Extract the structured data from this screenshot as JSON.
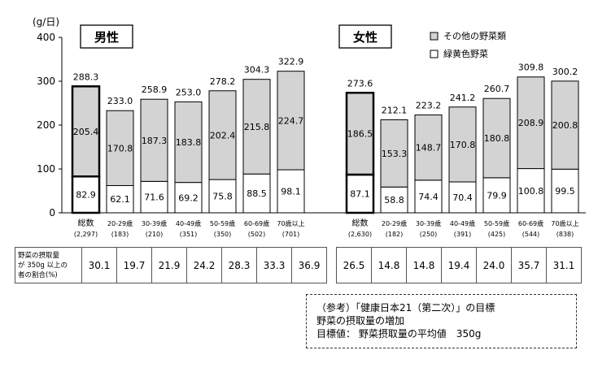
{
  "chart_data": {
    "type": "bar",
    "stacked": true,
    "y_unit": "(g/日)",
    "ylim": [
      0,
      400
    ],
    "yticks": [
      0,
      100,
      200,
      300,
      400
    ],
    "grid": false,
    "legend": {
      "position": "top-right",
      "entries": [
        {
          "name": "その他の野菜類",
          "color": "#d3d3d3"
        },
        {
          "name": "緑黄色野菜",
          "color": "#ffffff"
        }
      ]
    },
    "panels": [
      {
        "label": "男性",
        "categories": [
          "総数",
          "20-29歳",
          "30-39歳",
          "40-49歳",
          "50-59歳",
          "60-69歳",
          "70歳以上"
        ],
        "counts": [
          "(2,297)",
          "(183)",
          "(210)",
          "(351)",
          "(350)",
          "(502)",
          "(701)"
        ],
        "green_yellow": [
          82.9,
          62.1,
          71.6,
          69.2,
          75.8,
          88.5,
          98.1
        ],
        "other": [
          205.4,
          170.8,
          187.3,
          183.8,
          202.4,
          215.8,
          224.7
        ],
        "total": [
          288.3,
          233.0,
          258.9,
          253.0,
          278.2,
          304.3,
          322.9
        ],
        "total_labels": [
          "288.3",
          "233.0",
          "258.9",
          "253.0",
          "278.2",
          "304.3",
          "322.9"
        ],
        "green_labels": [
          "82.9",
          "62.1",
          "71.6",
          "69.2",
          "75.8",
          "88.5",
          "98.1"
        ],
        "other_labels": [
          "205.4",
          "170.8",
          "187.3",
          "183.8",
          "202.4",
          "215.8",
          "224.7"
        ]
      },
      {
        "label": "女性",
        "categories": [
          "総数",
          "20-29歳",
          "30-39歳",
          "40-49歳",
          "50-59歳",
          "60-69歳",
          "70歳以上"
        ],
        "counts": [
          "(2,630)",
          "(182)",
          "(250)",
          "(391)",
          "(425)",
          "(544)",
          "(838)"
        ],
        "green_yellow": [
          87.1,
          58.8,
          74.4,
          70.4,
          79.9,
          100.8,
          99.5
        ],
        "other": [
          186.5,
          153.3,
          148.7,
          170.8,
          180.8,
          208.9,
          200.8
        ],
        "total": [
          273.6,
          212.1,
          223.2,
          241.2,
          260.7,
          309.8,
          300.2
        ],
        "total_labels": [
          "273.6",
          "212.1",
          "223.2",
          "241.2",
          "260.7",
          "309.8",
          "300.2"
        ],
        "green_labels": [
          "87.1",
          "58.8",
          "74.4",
          "70.4",
          "79.9",
          "100.8",
          "99.5"
        ],
        "other_labels": [
          "186.5",
          "153.3",
          "148.7",
          "170.8",
          "180.8",
          "208.9",
          "200.8"
        ]
      }
    ]
  },
  "ratio_table": {
    "row_label_lines": [
      "野菜の摂取量",
      "が 350g 以上の",
      "者の割合(%)"
    ],
    "male": [
      "30.1",
      "19.7",
      "21.9",
      "24.2",
      "28.3",
      "33.3",
      "36.9"
    ],
    "female": [
      "26.5",
      "14.8",
      "14.8",
      "19.4",
      "24.0",
      "35.7",
      "31.1"
    ]
  },
  "note": {
    "line1": "（参考）「健康日本21（第二次）」の目標",
    "line2": "野菜の摂取量の増加",
    "line3": "目標値：  野菜摂取量の平均値　350g"
  }
}
